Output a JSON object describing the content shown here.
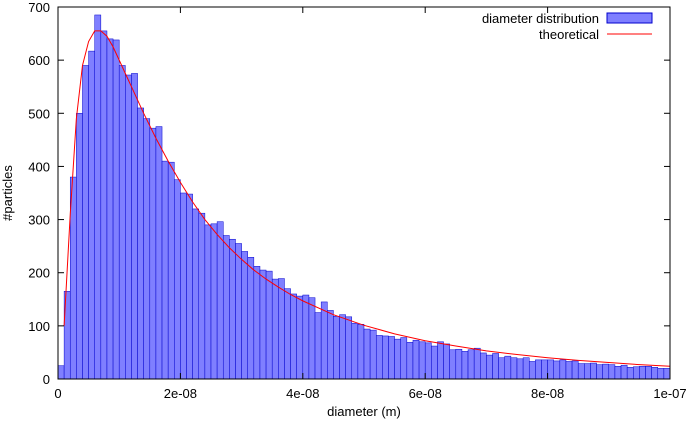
{
  "chart_data": {
    "type": "bar",
    "xlabel": "diameter (m)",
    "ylabel": "#particles",
    "xlim": [
      0,
      1e-07
    ],
    "ylim": [
      0,
      700
    ],
    "xticks": [
      0,
      2e-08,
      4e-08,
      6e-08,
      8e-08,
      1e-07
    ],
    "xtick_labels": [
      "0",
      "2e-08",
      "4e-08",
      "6e-08",
      "8e-08",
      "1e-07"
    ],
    "yticks": [
      0,
      100,
      200,
      300,
      400,
      500,
      600,
      700
    ],
    "ytick_labels": [
      "0",
      "100",
      "200",
      "300",
      "400",
      "500",
      "600",
      "700"
    ],
    "legend_position": "top-right",
    "bin_width": 1e-09,
    "series": [
      {
        "name": "diameter distribution",
        "kind": "histogram",
        "color": "#7f7fff",
        "edge_color": "#0000cc",
        "x": [
          0,
          1e-09,
          2e-09,
          3e-09,
          4e-09,
          5e-09,
          6e-09,
          7e-09,
          8e-09,
          9e-09,
          1e-08,
          1.1e-08,
          1.2e-08,
          1.3e-08,
          1.4e-08,
          1.5e-08,
          1.6e-08,
          1.7e-08,
          1.8e-08,
          1.9e-08,
          2e-08,
          2.1e-08,
          2.2e-08,
          2.3e-08,
          2.4e-08,
          2.5e-08,
          2.6e-08,
          2.7e-08,
          2.8e-08,
          2.9e-08,
          3e-08,
          3.1e-08,
          3.2e-08,
          3.3e-08,
          3.4e-08,
          3.5e-08,
          3.6e-08,
          3.7e-08,
          3.8e-08,
          3.9e-08,
          4e-08,
          4.1e-08,
          4.2e-08,
          4.3e-08,
          4.4e-08,
          4.5e-08,
          4.6e-08,
          4.7e-08,
          4.8e-08,
          4.9e-08,
          5e-08,
          5.1e-08,
          5.2e-08,
          5.3e-08,
          5.4e-08,
          5.5e-08,
          5.6e-08,
          5.7e-08,
          5.8e-08,
          5.9e-08,
          6e-08,
          6.1e-08,
          6.2e-08,
          6.3e-08,
          6.4e-08,
          6.5e-08,
          6.6e-08,
          6.7e-08,
          6.8e-08,
          6.9e-08,
          7e-08,
          7.1e-08,
          7.2e-08,
          7.3e-08,
          7.4e-08,
          7.5e-08,
          7.6e-08,
          7.7e-08,
          7.8e-08,
          7.9e-08,
          8e-08,
          8.1e-08,
          8.2e-08,
          8.3e-08,
          8.4e-08,
          8.5e-08,
          8.6e-08,
          8.7e-08,
          8.8e-08,
          8.9e-08,
          9e-08,
          9.1e-08,
          9.2e-08,
          9.3e-08,
          9.4e-08,
          9.5e-08,
          9.6e-08,
          9.7e-08,
          9.8e-08,
          9.9e-08
        ],
        "values": [
          25,
          165,
          380,
          500,
          590,
          617,
          685,
          655,
          640,
          638,
          590,
          572,
          575,
          510,
          490,
          472,
          475,
          410,
          408,
          375,
          350,
          348,
          320,
          312,
          290,
          292,
          296,
          270,
          263,
          255,
          240,
          229,
          212,
          205,
          203,
          188,
          189,
          170,
          160,
          156,
          158,
          153,
          125,
          145,
          129,
          118,
          121,
          117,
          105,
          103,
          94,
          92,
          82,
          81,
          80,
          75,
          78,
          69,
          73,
          70,
          68,
          62,
          70,
          66,
          55,
          56,
          52,
          55,
          58,
          49,
          45,
          48,
          40,
          43,
          40,
          38,
          40,
          33,
          36,
          36,
          36,
          34,
          36,
          33,
          34,
          29,
          29,
          30,
          27,
          28,
          27,
          24,
          26,
          22,
          23,
          24,
          24,
          22,
          20,
          20
        ]
      },
      {
        "name": "theoretical",
        "kind": "line",
        "color": "#ff0000",
        "x": [
          1e-09,
          2e-09,
          3e-09,
          4e-09,
          5e-09,
          6e-09,
          7e-09,
          8e-09,
          9e-09,
          1e-08,
          1.2e-08,
          1.4e-08,
          1.6e-08,
          1.8e-08,
          2e-08,
          2.2e-08,
          2.4e-08,
          2.6e-08,
          2.8e-08,
          3e-08,
          3.2e-08,
          3.4e-08,
          3.6e-08,
          3.8e-08,
          4e-08,
          4.5e-08,
          5e-08,
          5.5e-08,
          6e-08,
          6.5e-08,
          7e-08,
          7.5e-08,
          8e-08,
          8.5e-08,
          9e-08,
          9.5e-08,
          1e-07
        ],
        "values": [
          100,
          310,
          490,
          590,
          635,
          655,
          655,
          645,
          625,
          600,
          550,
          500,
          453,
          410,
          370,
          333,
          300,
          272,
          247,
          225,
          205,
          188,
          173,
          159,
          147,
          121,
          101,
          85,
          72,
          62,
          53,
          46,
          40,
          35,
          31,
          27,
          24
        ]
      }
    ]
  }
}
